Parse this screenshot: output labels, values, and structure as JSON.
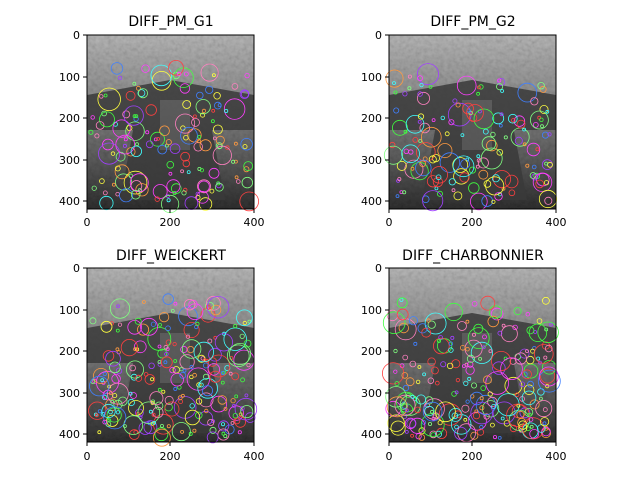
{
  "figure": {
    "panels": [
      {
        "title": "DIFF_PM_G1",
        "x_ticks": [
          "0",
          "200",
          "400"
        ],
        "y_ticks": [
          "0",
          "100",
          "200",
          "300",
          "400"
        ],
        "keypoint_density": "medium"
      },
      {
        "title": "DIFF_PM_G2",
        "x_ticks": [
          "0",
          "200",
          "400"
        ],
        "y_ticks": [
          "0",
          "100",
          "200",
          "300",
          "400"
        ],
        "keypoint_density": "medium"
      },
      {
        "title": "DIFF_WEICKERT",
        "x_ticks": [
          "0",
          "200",
          "400"
        ],
        "y_ticks": [
          "0",
          "100",
          "200",
          "300",
          "400"
        ],
        "keypoint_density": "high"
      },
      {
        "title": "DIFF_CHARBONNIER",
        "x_ticks": [
          "0",
          "200",
          "400"
        ],
        "y_ticks": [
          "0",
          "100",
          "200",
          "300",
          "400"
        ],
        "keypoint_density": "high"
      }
    ],
    "image_description": "grayscale aerial harbor scene with colorful keypoint circles",
    "colors": {
      "background": "#ffffff",
      "axis": "#000000"
    }
  }
}
